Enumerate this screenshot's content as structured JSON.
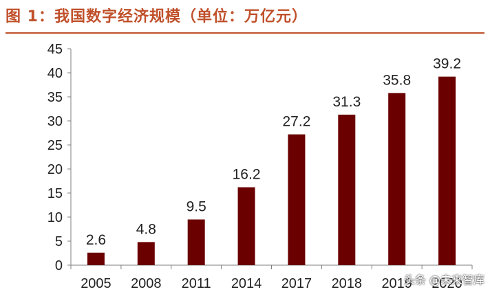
{
  "header": {
    "title": "图 1：我国数字经济规模（单位：万亿元）"
  },
  "watermark": {
    "text": "头条 @未来智库"
  },
  "colors": {
    "title": "#c0502a",
    "bar": "#6b0000",
    "axis": "#7f7f7f"
  },
  "chart_data": {
    "type": "bar",
    "title": "图 1：我国数字经济规模（单位：万亿元）",
    "categories": [
      "2005",
      "2008",
      "2011",
      "2014",
      "2017",
      "2018",
      "2019",
      "2020"
    ],
    "values": [
      2.6,
      4.8,
      9.5,
      16.2,
      27.2,
      31.3,
      35.8,
      39.2
    ],
    "data_labels": [
      "2.6",
      "4.8",
      "9.5",
      "16.2",
      "27.2",
      "31.3",
      "35.8",
      "39.2"
    ],
    "yticks": [
      "0",
      "5",
      "10",
      "15",
      "20",
      "25",
      "30",
      "35",
      "40",
      "45"
    ],
    "ylim": [
      0,
      45
    ],
    "grid": false,
    "legend": "none"
  }
}
